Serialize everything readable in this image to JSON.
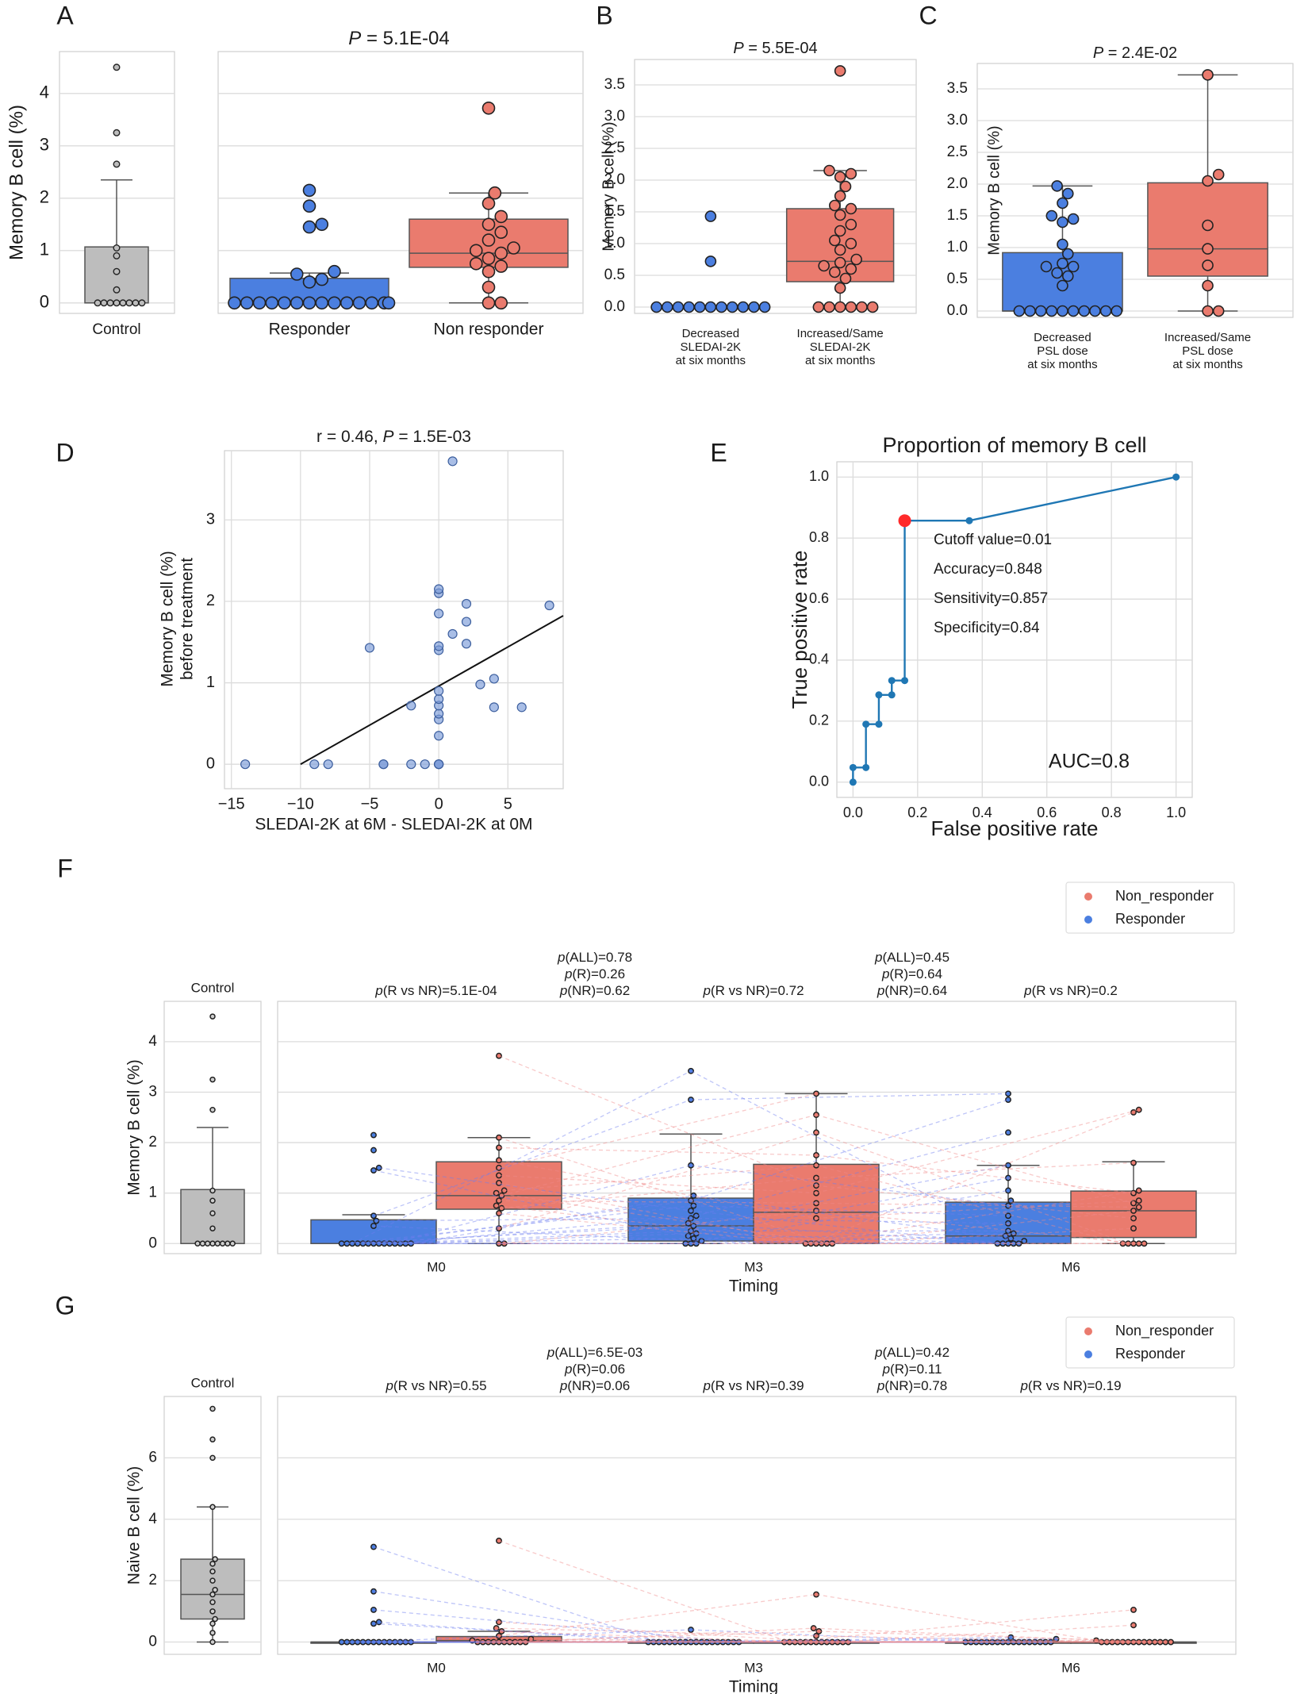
{
  "colors": {
    "responder": "#4b7fe0",
    "nonresponder": "#ea7b6e",
    "control": "#bdbdbd",
    "roc": "#1f77b4",
    "cutoff": "#ff2a2a",
    "grid": "#dcdcdc"
  },
  "chart_data": [
    {
      "id": "A",
      "panel_label": "A",
      "type": "box+swarm",
      "title_italic": "P",
      "title_rest": " = 5.1E-04",
      "ylabel": "Memory B cell (%)",
      "ylim": [
        -0.2,
        4.8
      ],
      "yticks": [
        "0",
        "1",
        "2",
        "3",
        "4"
      ],
      "groups": [
        {
          "name": "Control",
          "color": "control",
          "q1": 0.0,
          "median": 0.0,
          "q3": 1.07,
          "whisker_low": 0.0,
          "whisker_high": 2.35,
          "points": [
            0,
            0,
            0,
            0,
            0,
            0,
            0,
            0,
            0.25,
            0.6,
            0.9,
            1.05,
            2.65,
            3.25,
            4.5
          ]
        },
        {
          "name": "Responder",
          "color": "responder",
          "q1": 0.0,
          "median": 0.0,
          "q3": 0.47,
          "whisker_low": 0.0,
          "whisker_high": 0.57,
          "points": [
            0,
            0,
            0,
            0,
            0,
            0,
            0,
            0,
            0,
            0,
            0,
            0,
            0,
            0,
            0.4,
            0.45,
            0.55,
            0.6,
            1.45,
            1.5,
            1.85,
            2.15
          ]
        },
        {
          "name": "Non responder",
          "color": "nonresponder",
          "q1": 0.68,
          "median": 0.95,
          "q3": 1.6,
          "whisker_low": 0.0,
          "whisker_high": 2.1,
          "points": [
            0,
            0,
            0.3,
            0.6,
            0.7,
            0.75,
            0.85,
            0.95,
            1.0,
            1.05,
            1.2,
            1.35,
            1.5,
            1.65,
            1.9,
            2.1,
            3.72
          ]
        }
      ]
    },
    {
      "id": "B",
      "panel_label": "B",
      "type": "box+swarm",
      "title_italic": "P",
      "title_rest": " = 5.5E-04",
      "ylabel": "Memory B cell (%)",
      "ylim": [
        -0.1,
        3.9
      ],
      "yticks": [
        "0.0",
        "0.5",
        "1.0",
        "1.5",
        "2.0",
        "2.5",
        "3.0",
        "3.5"
      ],
      "groups": [
        {
          "name": "Decreased\nSLEDAI-2K\nat six months",
          "color": "responder",
          "q1": 0.0,
          "median": 0.0,
          "q3": 0.0,
          "whisker_low": 0.0,
          "whisker_high": 0.0,
          "points": [
            0,
            0,
            0,
            0,
            0,
            0,
            0,
            0,
            0,
            0,
            0,
            0.72,
            1.43
          ]
        },
        {
          "name": "Increased/Same\nSLEDAI-2K\nat six months",
          "color": "nonresponder",
          "q1": 0.4,
          "median": 0.72,
          "q3": 1.55,
          "whisker_low": 0.0,
          "whisker_high": 2.15,
          "points": [
            0,
            0,
            0,
            0,
            0,
            0,
            0.3,
            0.45,
            0.55,
            0.6,
            0.65,
            0.7,
            0.75,
            0.9,
            1.0,
            1.05,
            1.2,
            1.3,
            1.45,
            1.55,
            1.6,
            1.75,
            1.9,
            2.05,
            2.1,
            2.15,
            3.72
          ]
        }
      ]
    },
    {
      "id": "C",
      "panel_label": "C",
      "type": "box+swarm",
      "title_italic": "P",
      "title_rest": " = 2.4E-02",
      "ylabel": "Memory B cell (%)",
      "ylim": [
        -0.1,
        3.9
      ],
      "yticks": [
        "0.0",
        "0.5",
        "1.0",
        "1.5",
        "2.0",
        "2.5",
        "3.0",
        "3.5"
      ],
      "groups": [
        {
          "name": "Decreased\nPSL dose\nat six months",
          "color": "responder",
          "q1": 0.0,
          "median": 0.0,
          "q3": 0.92,
          "whisker_low": 0.0,
          "whisker_high": 1.97,
          "points": [
            0,
            0,
            0,
            0,
            0,
            0,
            0,
            0,
            0,
            0,
            0.4,
            0.55,
            0.6,
            0.7,
            0.7,
            0.75,
            0.9,
            1.05,
            1.4,
            1.45,
            1.5,
            1.7,
            1.85,
            1.97
          ]
        },
        {
          "name": "Increased/Same\nPSL dose\nat six months",
          "color": "nonresponder",
          "q1": 0.55,
          "median": 0.98,
          "q3": 2.02,
          "whisker_low": 0.0,
          "whisker_high": 3.72,
          "points": [
            0,
            0,
            0.4,
            0.72,
            0.98,
            1.35,
            2.05,
            2.15,
            3.72
          ]
        }
      ]
    },
    {
      "id": "D",
      "panel_label": "D",
      "type": "scatter",
      "title_plain": "r = 0.46, ",
      "title_italic": "P",
      "title_rest": " = 1.5E-03",
      "xlabel": "SLEDAI-2K at 6M - SLEDAI-2K at 0M",
      "ylabel_line1": "Memory B cell (%)",
      "ylabel_line2": "before treatment",
      "xlim": [
        -15.5,
        9
      ],
      "ylim": [
        -0.3,
        3.85
      ],
      "xticks": [
        "−15",
        "−10",
        "−5",
        "0",
        "5"
      ],
      "yticks": [
        "0",
        "1",
        "2",
        "3"
      ],
      "points": [
        [
          -14,
          0
        ],
        [
          -9,
          0
        ],
        [
          -8,
          0
        ],
        [
          -4,
          0
        ],
        [
          -4,
          0
        ],
        [
          -2,
          0
        ],
        [
          -1,
          0
        ],
        [
          0,
          0
        ],
        [
          0,
          0
        ],
        [
          0,
          0
        ],
        [
          0,
          0.35
        ],
        [
          0,
          0.55
        ],
        [
          0,
          0.62
        ],
        [
          0,
          0.72
        ],
        [
          0,
          0.8
        ],
        [
          0,
          0.9
        ],
        [
          0,
          1.4
        ],
        [
          0,
          1.45
        ],
        [
          0,
          1.85
        ],
        [
          0,
          2.1
        ],
        [
          0,
          2.15
        ],
        [
          1,
          1.6
        ],
        [
          2,
          1.48
        ],
        [
          2,
          1.75
        ],
        [
          2,
          1.97
        ],
        [
          3,
          0.98
        ],
        [
          4,
          1.05
        ],
        [
          4,
          0.7
        ],
        [
          6,
          0.7
        ],
        [
          8,
          1.95
        ],
        [
          -5,
          1.43
        ],
        [
          -2,
          0.72
        ],
        [
          1,
          3.72
        ]
      ],
      "regression": {
        "slope": 0.096,
        "intercept": 0.96
      }
    },
    {
      "id": "E",
      "panel_label": "E",
      "type": "line",
      "title": "Proportion of memory B cell",
      "xlabel": "False positive rate",
      "ylabel": "True positive rate",
      "xlim": [
        -0.05,
        1.05
      ],
      "ylim": [
        -0.05,
        1.05
      ],
      "xticks": [
        "0.0",
        "0.2",
        "0.4",
        "0.6",
        "0.8",
        "1.0"
      ],
      "yticks": [
        "0.0",
        "0.2",
        "0.4",
        "0.6",
        "0.8",
        "1.0"
      ],
      "fpr": [
        0.0,
        0.0,
        0.04,
        0.04,
        0.08,
        0.08,
        0.12,
        0.12,
        0.16,
        0.16,
        0.36,
        1.0
      ],
      "tpr": [
        0.0,
        0.048,
        0.048,
        0.19,
        0.19,
        0.286,
        0.286,
        0.333,
        0.333,
        0.857,
        0.857,
        1.0
      ],
      "cutoff_point": [
        0.16,
        0.857
      ],
      "annotations": [
        "Cutoff value=0.01",
        "Accuracy=0.848",
        "Sensitivity=0.857",
        "Specificity=0.84"
      ],
      "auc_label": "AUC=0.8"
    },
    {
      "id": "F",
      "panel_label": "F",
      "type": "box+swarm+paired",
      "ylabel": "Memory B cell (%)",
      "xlabel": "Timing",
      "ylim": [
        -0.2,
        4.8
      ],
      "yticks": [
        "0",
        "1",
        "2",
        "3",
        "4"
      ],
      "legend": [
        "Non_responder",
        "Responder"
      ],
      "control": {
        "label": "Control",
        "q1": 0.0,
        "median": 0.0,
        "q3": 1.07,
        "whisker_low": 0.0,
        "whisker_high": 2.3,
        "points": [
          0,
          0,
          0,
          0,
          0,
          0,
          0,
          0,
          0.3,
          0.6,
          0.85,
          1.05,
          2.65,
          3.25,
          4.5
        ]
      },
      "timepoints": [
        "M0",
        "M3",
        "M6"
      ],
      "boxes": [
        {
          "t": 0,
          "group": "responder",
          "q1": 0.0,
          "median": 0.0,
          "q3": 0.47,
          "whisker_low": 0.0,
          "whisker_high": 0.57,
          "points": [
            0,
            0,
            0,
            0,
            0,
            0,
            0,
            0,
            0,
            0,
            0,
            0,
            0,
            0,
            0.35,
            0.45,
            0.55,
            1.45,
            1.5,
            1.85,
            2.15
          ]
        },
        {
          "t": 0,
          "group": "nonresponder",
          "q1": 0.68,
          "median": 0.95,
          "q3": 1.62,
          "whisker_low": 0.0,
          "whisker_high": 2.1,
          "points": [
            0,
            0,
            0.3,
            0.6,
            0.7,
            0.75,
            0.85,
            0.95,
            1.0,
            1.05,
            1.2,
            1.35,
            1.5,
            1.65,
            1.9,
            2.1,
            3.72
          ]
        },
        {
          "t": 1,
          "group": "responder",
          "q1": 0.05,
          "median": 0.35,
          "q3": 0.9,
          "whisker_low": 0.0,
          "whisker_high": 2.17,
          "points": [
            0,
            0,
            0,
            0.05,
            0.1,
            0.15,
            0.2,
            0.25,
            0.35,
            0.4,
            0.5,
            0.55,
            0.65,
            0.75,
            0.85,
            0.95,
            1.55,
            2.85,
            3.42
          ]
        },
        {
          "t": 1,
          "group": "nonresponder",
          "q1": 0.0,
          "median": 0.62,
          "q3": 1.57,
          "whisker_low": 0.0,
          "whisker_high": 2.97,
          "points": [
            0,
            0,
            0,
            0,
            0,
            0,
            0.5,
            0.65,
            0.8,
            1.0,
            1.15,
            1.3,
            1.55,
            1.75,
            2.2,
            2.55,
            2.97
          ]
        },
        {
          "t": 2,
          "group": "responder",
          "q1": 0.0,
          "median": 0.15,
          "q3": 0.82,
          "whisker_low": 0.0,
          "whisker_high": 1.55,
          "points": [
            0,
            0,
            0,
            0,
            0,
            0.05,
            0.1,
            0.15,
            0.2,
            0.25,
            0.4,
            0.55,
            0.75,
            0.85,
            1.05,
            1.3,
            1.55,
            2.2,
            2.85,
            2.97
          ]
        },
        {
          "t": 2,
          "group": "nonresponder",
          "q1": 0.12,
          "median": 0.65,
          "q3": 1.04,
          "whisker_low": 0.0,
          "whisker_high": 1.62,
          "points": [
            0,
            0,
            0,
            0,
            0,
            0.3,
            0.5,
            0.65,
            0.72,
            0.8,
            0.85,
            1.0,
            1.05,
            1.6,
            2.6,
            2.65
          ]
        }
      ],
      "annotations": [
        {
          "pos": "M0",
          "lines": [
            [
              "p",
              "(R vs NR)=5.1E-04"
            ]
          ]
        },
        {
          "pos": "M0-M3",
          "lines": [
            [
              "p",
              "(ALL)=0.78"
            ],
            [
              "p",
              "(R)=0.26"
            ],
            [
              "p",
              "(NR)=0.62"
            ]
          ]
        },
        {
          "pos": "M3",
          "lines": [
            [
              "p",
              "(R vs NR)=0.72"
            ]
          ]
        },
        {
          "pos": "M3-M6",
          "lines": [
            [
              "p",
              "(ALL)=0.45"
            ],
            [
              "p",
              "(R)=0.64"
            ],
            [
              "p",
              "(NR)=0.64"
            ]
          ]
        },
        {
          "pos": "M6",
          "lines": [
            [
              "p",
              "(R vs NR)=0.2"
            ]
          ]
        }
      ]
    },
    {
      "id": "G",
      "panel_label": "G",
      "type": "box+swarm+paired",
      "ylabel": "Naive B cell (%)",
      "xlabel": "Timing",
      "ylim": [
        -0.4,
        8.0
      ],
      "yticks": [
        "0",
        "2",
        "4",
        "6"
      ],
      "legend": [
        "Non_responder",
        "Responder"
      ],
      "control": {
        "label": "Control",
        "q1": 0.75,
        "median": 1.55,
        "q3": 2.7,
        "whisker_low": 0.0,
        "whisker_high": 4.4,
        "points": [
          0,
          0.3,
          0.6,
          0.75,
          1.0,
          1.3,
          1.55,
          1.7,
          2.0,
          2.3,
          2.55,
          2.7,
          4.4,
          6.0,
          6.6,
          7.6
        ]
      },
      "timepoints": [
        "M0",
        "M3",
        "M6"
      ],
      "boxes": [
        {
          "t": 0,
          "group": "responder",
          "q1": 0.0,
          "median": 0.0,
          "q3": 0.0,
          "whisker_low": 0.0,
          "whisker_high": 0.0,
          "points": [
            0,
            0,
            0,
            0,
            0,
            0,
            0,
            0,
            0,
            0,
            0,
            0,
            0,
            0,
            0.6,
            0.65,
            1.05,
            1.65,
            3.1
          ]
        },
        {
          "t": 0,
          "group": "nonresponder",
          "q1": 0.0,
          "median": 0.05,
          "q3": 0.18,
          "whisker_low": 0.0,
          "whisker_high": 0.35,
          "points": [
            0,
            0,
            0,
            0,
            0,
            0,
            0,
            0,
            0,
            0,
            0.05,
            0.1,
            0.2,
            0.35,
            0.45,
            0.65,
            3.3
          ]
        },
        {
          "t": 1,
          "group": "responder",
          "q1": 0.0,
          "median": 0.0,
          "q3": 0.0,
          "whisker_low": 0.0,
          "whisker_high": 0.0,
          "points": [
            0,
            0,
            0,
            0,
            0,
            0,
            0,
            0,
            0,
            0,
            0,
            0,
            0,
            0,
            0,
            0,
            0,
            0,
            0.4
          ]
        },
        {
          "t": 1,
          "group": "nonresponder",
          "q1": 0.0,
          "median": 0.0,
          "q3": 0.0,
          "whisker_low": 0.0,
          "whisker_high": 0.0,
          "points": [
            0,
            0,
            0,
            0,
            0,
            0,
            0,
            0,
            0,
            0,
            0,
            0,
            0,
            0.2,
            0.35,
            0.45,
            1.55
          ]
        },
        {
          "t": 2,
          "group": "responder",
          "q1": 0.0,
          "median": 0.0,
          "q3": 0.0,
          "whisker_low": 0.0,
          "whisker_high": 0.0,
          "points": [
            0,
            0,
            0,
            0,
            0,
            0,
            0,
            0,
            0,
            0,
            0,
            0,
            0,
            0,
            0,
            0,
            0,
            0.1,
            0.15
          ]
        },
        {
          "t": 2,
          "group": "nonresponder",
          "q1": 0.0,
          "median": 0.0,
          "q3": 0.0,
          "whisker_low": 0.0,
          "whisker_high": 0.0,
          "points": [
            0,
            0,
            0,
            0,
            0,
            0,
            0,
            0,
            0,
            0,
            0,
            0,
            0,
            0,
            0.05,
            0.55,
            1.05
          ]
        }
      ],
      "annotations": [
        {
          "pos": "M0",
          "lines": [
            [
              "p",
              "(R vs NR)=0.55"
            ]
          ]
        },
        {
          "pos": "M0-M3",
          "lines": [
            [
              "p",
              "(ALL)=6.5E-03"
            ],
            [
              "p",
              "(R)=0.06"
            ],
            [
              "p",
              "(NR)=0.06"
            ]
          ]
        },
        {
          "pos": "M3",
          "lines": [
            [
              "p",
              "(R vs NR)=0.39"
            ]
          ]
        },
        {
          "pos": "M3-M6",
          "lines": [
            [
              "p",
              "(ALL)=0.42"
            ],
            [
              "p",
              "(R)=0.11"
            ],
            [
              "p",
              "(NR)=0.78"
            ]
          ]
        },
        {
          "pos": "M6",
          "lines": [
            [
              "p",
              "(R vs NR)=0.19"
            ]
          ]
        }
      ]
    }
  ]
}
